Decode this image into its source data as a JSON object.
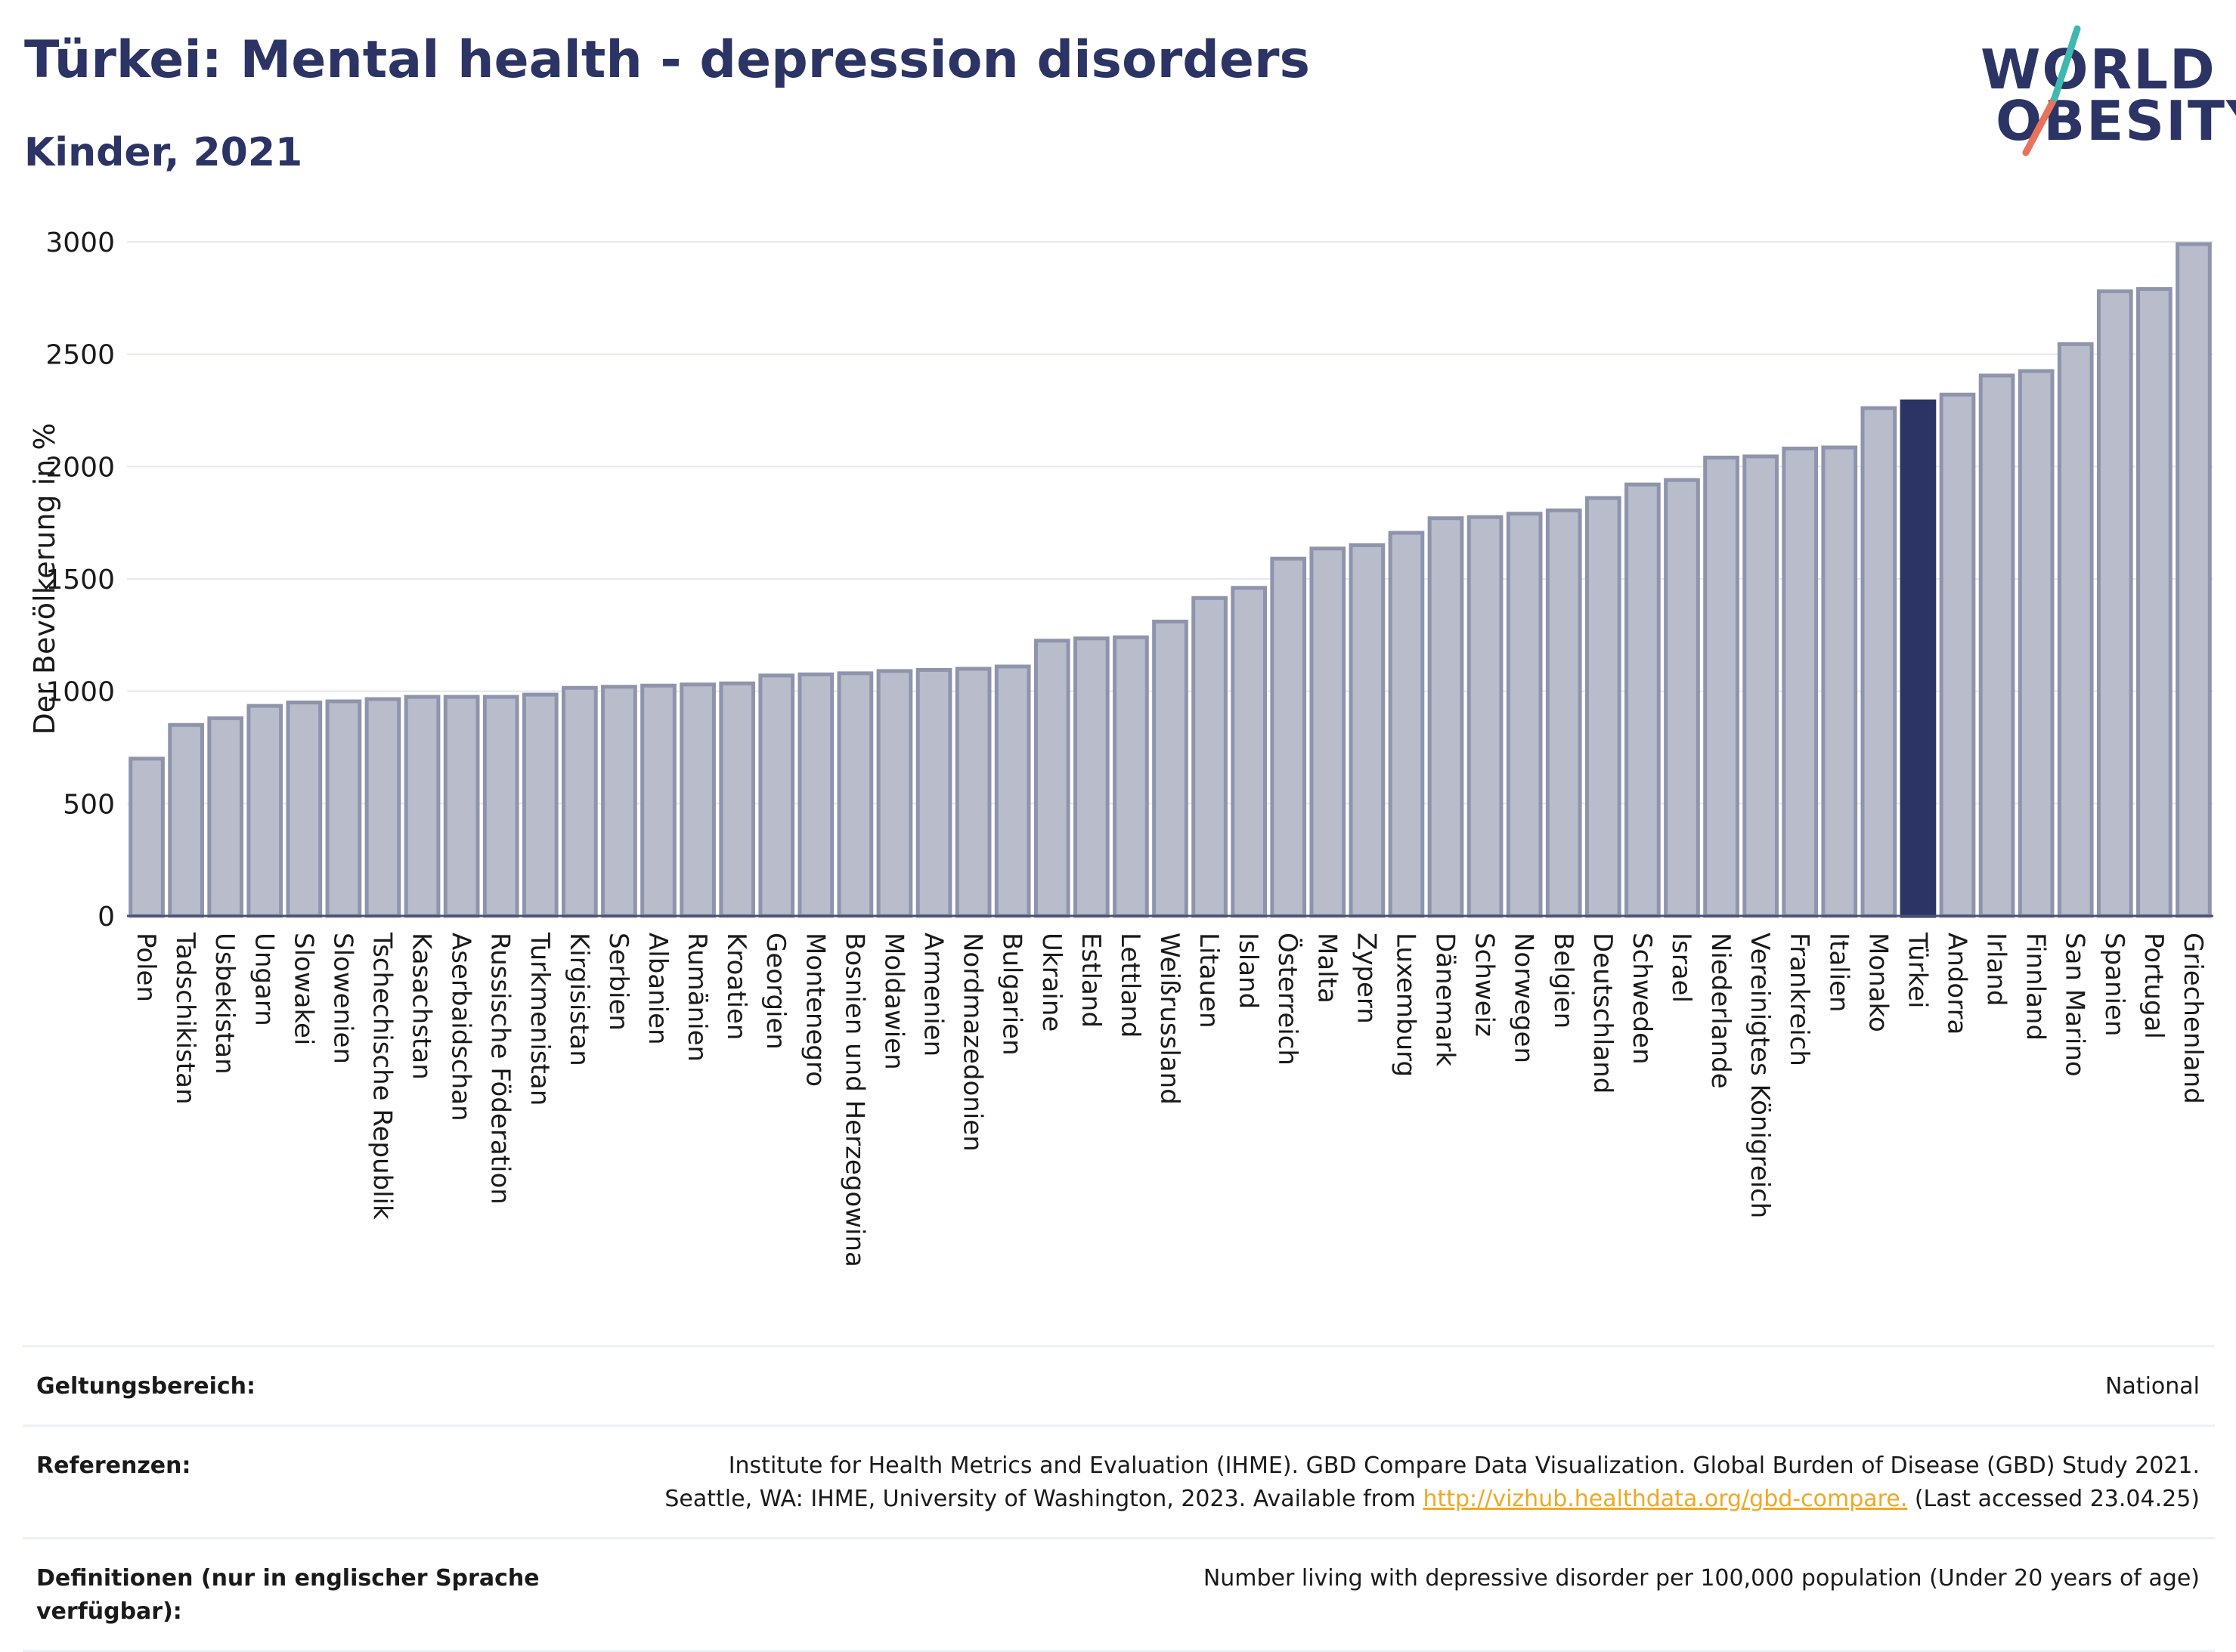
{
  "title": "Türkei: Mental health - depression disorders",
  "subtitle": "Kinder, 2021",
  "logo": {
    "line1": "WORLD",
    "line2": "OBESITY"
  },
  "colors": {
    "bar": "#b8bccb",
    "bar_stroke": "#8f94ad",
    "highlight": "#2b3464",
    "grid": "#e6e8ee",
    "link": "#f0a823"
  },
  "chart_data": {
    "type": "bar",
    "ylabel": "Der Bevölkerung in %",
    "ylim": [
      0,
      3000
    ],
    "yticks": [
      0,
      500,
      1000,
      1500,
      2000,
      2500,
      3000
    ],
    "highlight": "Türkei",
    "categories": [
      "Polen",
      "Tadschikistan",
      "Usbekistan",
      "Ungarn",
      "Slowakei",
      "Slowenien",
      "Tschechische Republik",
      "Kasachstan",
      "Aserbaidschan",
      "Russische Föderation",
      "Turkmenistan",
      "Kirgisistan",
      "Serbien",
      "Albanien",
      "Rumänien",
      "Kroatien",
      "Georgien",
      "Montenegro",
      "Bosnien und Herzegowina",
      "Moldawien",
      "Armenien",
      "Nordmazedonien",
      "Bulgarien",
      "Ukraine",
      "Estland",
      "Lettland",
      "Weißrussland",
      "Litauen",
      "Island",
      "Österreich",
      "Malta",
      "Zypern",
      "Luxemburg",
      "Dänemark",
      "Schweiz",
      "Norwegen",
      "Belgien",
      "Deutschland",
      "Schweden",
      "Israel",
      "Niederlande",
      "Vereinigtes Königreich",
      "Frankreich",
      "Italien",
      "Monako",
      "Türkei",
      "Andorra",
      "Irland",
      "Finnland",
      "San Marino",
      "Spanien",
      "Portugal",
      "Griechenland"
    ],
    "values": [
      700,
      850,
      880,
      935,
      950,
      955,
      965,
      975,
      975,
      975,
      985,
      1015,
      1020,
      1025,
      1030,
      1035,
      1070,
      1075,
      1080,
      1090,
      1095,
      1100,
      1110,
      1225,
      1235,
      1240,
      1310,
      1415,
      1460,
      1590,
      1635,
      1650,
      1705,
      1770,
      1775,
      1790,
      1805,
      1860,
      1920,
      1940,
      2040,
      2045,
      2080,
      2085,
      2260,
      2290,
      2320,
      2405,
      2425,
      2545,
      2780,
      2790,
      2990
    ]
  },
  "info": {
    "scope_label": "Geltungsbereich:",
    "scope_value": "National",
    "ref_label": "Referenzen:",
    "ref_line1": "Institute for Health Metrics and Evaluation (IHME). GBD Compare Data Visualization. Global Burden of Disease (GBD) Study 2021.",
    "ref_line2_pre": "Seattle, WA: IHME, University of Washington, 2023. Available from ",
    "ref_link": "http://vizhub.healthdata.org/gbd-compare.",
    "ref_line2_post": " (Last accessed 23.04.25)",
    "def_label": "Definitionen (nur in englischer Sprache verfügbar):",
    "def_value": "Number living with depressive disorder per 100,000 population (Under 20 years of age)"
  }
}
